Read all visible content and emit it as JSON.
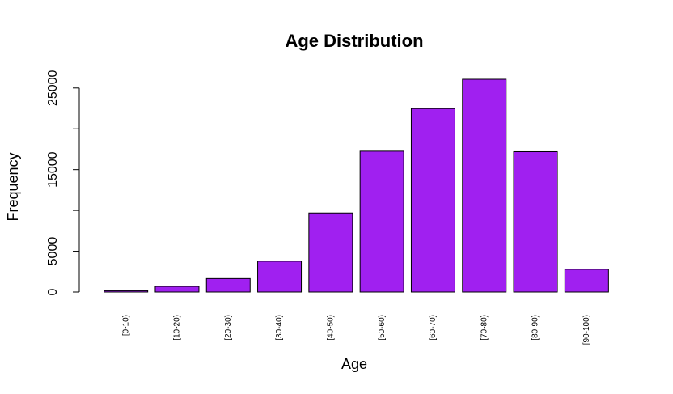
{
  "chart_data": {
    "type": "bar",
    "title": "Age Distribution",
    "xlabel": "Age",
    "ylabel": "Frequency",
    "categories": [
      "[0-10)",
      "[10-20)",
      "[20-30)",
      "[30-40)",
      "[40-50)",
      "[50-60)",
      "[60-70)",
      "[70-80)",
      "[80-90)",
      "[90-100)"
    ],
    "values": [
      160,
      690,
      1650,
      3780,
      9690,
      17260,
      22480,
      26070,
      17200,
      2790
    ],
    "ylim": [
      0,
      26070
    ],
    "yticks": [
      0,
      5000,
      15000,
      25000
    ],
    "ytick_marks": [
      0,
      5000,
      10000,
      15000,
      20000,
      25000
    ],
    "grid": false,
    "colors": {
      "bar_fill": "#A020F0",
      "bar_stroke": "#000000",
      "axis": "#000000"
    }
  }
}
